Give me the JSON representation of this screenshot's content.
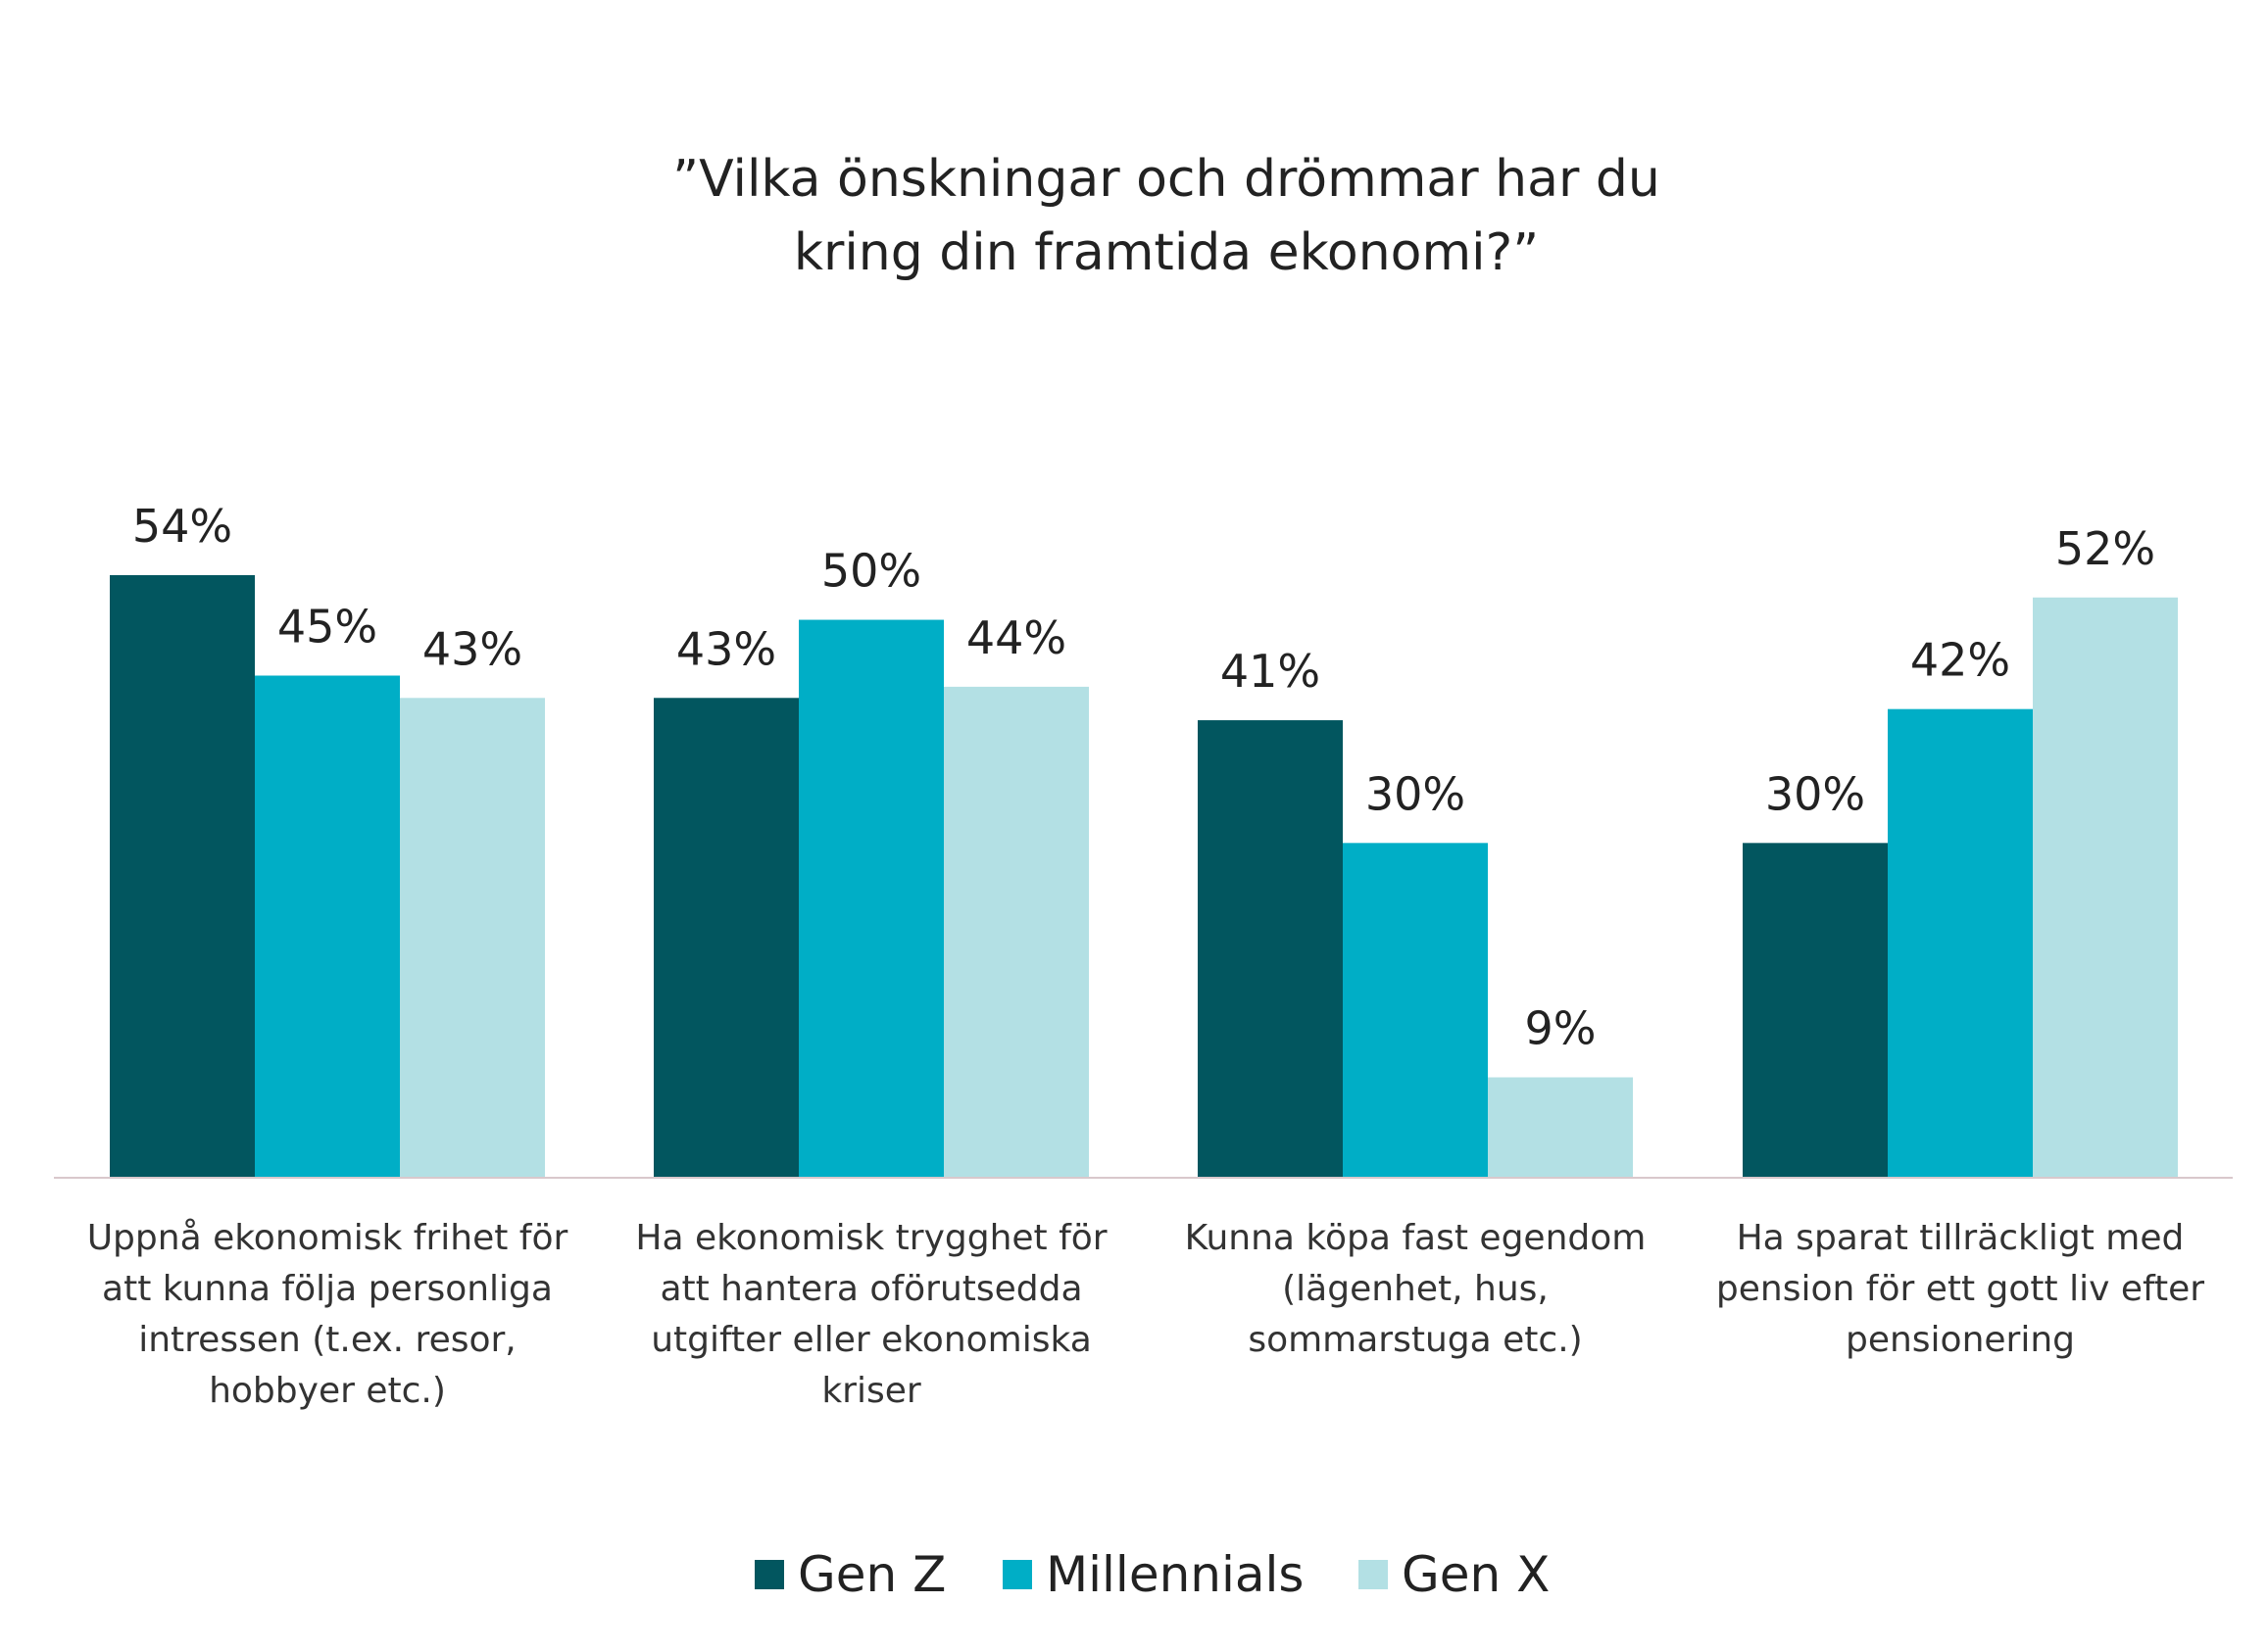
{
  "chart_data": {
    "type": "bar",
    "title_lines": [
      "”Vilka önskningar och drömmar har du",
      "kring din framtida ekonomi?”"
    ],
    "categories": [
      [
        "Uppnå ekonomisk frihet för",
        "att kunna följa personliga",
        "intressen (t.ex. resor,",
        "hobbyer etc.)"
      ],
      [
        "Ha ekonomisk trygghet för",
        "att hantera oförutsedda",
        "utgifter eller ekonomiska",
        "kriser"
      ],
      [
        "Kunna köpa fast egendom",
        "(lägenhet, hus,",
        "sommarstuga etc.)"
      ],
      [
        "Ha sparat tillräckligt med",
        "pension för ett gott liv efter",
        "pensionering"
      ]
    ],
    "series": [
      {
        "name": "Gen Z",
        "color": "#02565f",
        "values": [
          54,
          43,
          41,
          30
        ],
        "labels": [
          "54%",
          "43%",
          "41%",
          "30%"
        ]
      },
      {
        "name": "Millennials",
        "color": "#00aec6",
        "values": [
          45,
          50,
          30,
          42
        ],
        "labels": [
          "45%",
          "50%",
          "30%",
          "42%"
        ]
      },
      {
        "name": "Gen X",
        "color": "#b3e0e4",
        "values": [
          43,
          44,
          9,
          52
        ],
        "labels": [
          "43%",
          "44%",
          "9%",
          "52%"
        ]
      }
    ],
    "ylim": [
      0,
      54
    ],
    "grid": false,
    "legend_position": "bottom",
    "axis_color": "#d9c8cc"
  }
}
